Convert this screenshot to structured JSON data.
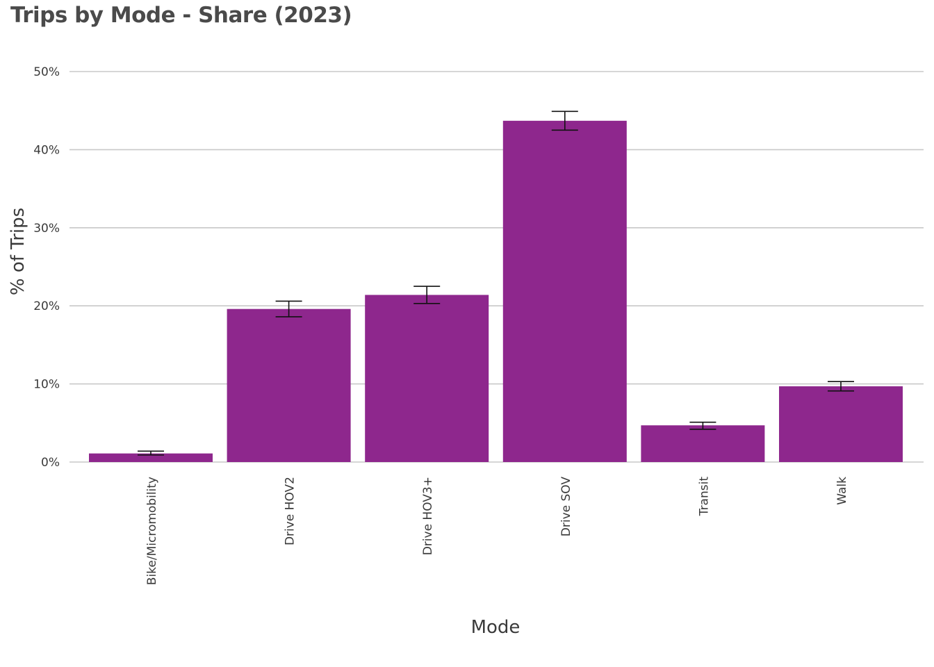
{
  "chart_data": {
    "type": "bar",
    "title": "Trips by Mode - Share (2023)",
    "xlabel": "Mode",
    "ylabel": "% of Trips",
    "categories": [
      "Bike/Micromobility",
      "Drive HOV2",
      "Drive HOV3+",
      "Drive SOV",
      "Transit",
      "Walk"
    ],
    "values": [
      1.1,
      19.6,
      21.4,
      43.7,
      4.7,
      9.7
    ],
    "error_low": [
      0.9,
      18.6,
      20.3,
      42.5,
      4.2,
      9.1
    ],
    "error_high": [
      1.4,
      20.6,
      22.5,
      44.9,
      5.1,
      10.3
    ],
    "ylim": [
      0,
      50
    ],
    "yticks": [
      0,
      10,
      20,
      30,
      40,
      50
    ],
    "ytick_labels": [
      "0%",
      "10%",
      "20%",
      "30%",
      "40%",
      "50%"
    ],
    "bar_color": "#8e278d",
    "grid": true,
    "legend": "none"
  }
}
